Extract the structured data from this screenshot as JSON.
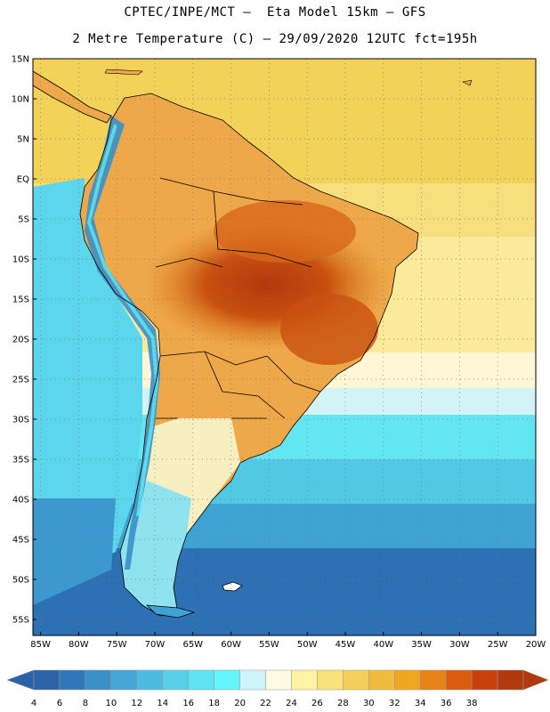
{
  "header": {
    "title_line1": "CPTEC/INPE/MCT –  Eta Model 15km – GFS",
    "title_line2": "2 Metre Temperature (C) – 29/09/2020 12UTC fct=195h"
  },
  "map": {
    "variable": "2 Metre Temperature",
    "units": "C",
    "lat_labels": [
      "15N",
      "10N",
      "5N",
      "EQ",
      "5S",
      "10S",
      "15S",
      "20S",
      "25S",
      "30S",
      "35S",
      "40S",
      "45S",
      "50S",
      "55S"
    ],
    "lon_labels": [
      "85W",
      "80W",
      "75W",
      "70W",
      "65W",
      "60W",
      "55W",
      "50W",
      "45W",
      "40W",
      "35W",
      "30W",
      "25W",
      "20W"
    ],
    "lat_range": [
      15,
      -57
    ],
    "lon_range": [
      -86,
      -20
    ]
  },
  "colorbar": {
    "labels": [
      "4",
      "6",
      "8",
      "10",
      "12",
      "14",
      "16",
      "18",
      "20",
      "22",
      "24",
      "26",
      "28",
      "30",
      "32",
      "34",
      "36",
      "38"
    ],
    "colors": [
      "#2b63a8",
      "#2f77b8",
      "#3a8fc8",
      "#45a5d6",
      "#4ebbe0",
      "#57d0e8",
      "#5fe5f2",
      "#62f6fb",
      "#ccf4fa",
      "#fffbe2",
      "#fff2a3",
      "#f9e27a",
      "#f4cf5c",
      "#efbc3d",
      "#eea51f",
      "#e98318",
      "#db5c0f",
      "#c8400c",
      "#b2380e"
    ],
    "left_arrow_color": "#2b63a8",
    "right_arrow_color": "#b2380e"
  }
}
